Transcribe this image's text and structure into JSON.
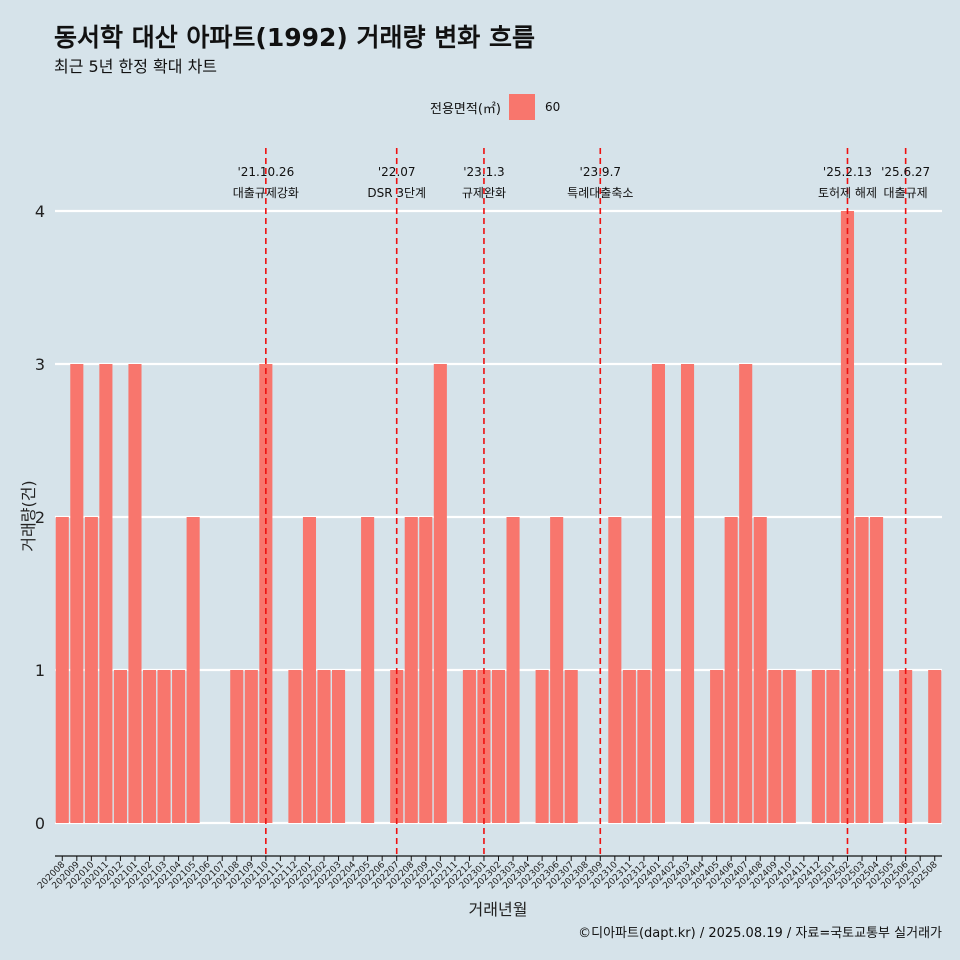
{
  "title": "동서학 대산 아파트(1992) 거래량 변화 흐름",
  "subtitle": "최근 5년 한정 확대 차트",
  "legend": {
    "title": "전용면적(㎡)",
    "items": [
      {
        "label": "60",
        "color": "#f8766d"
      }
    ]
  },
  "caption": "©디아파트(dapt.kr) / 2025.08.19 / 자료=국토교통부 실거래가",
  "chart_data": {
    "type": "bar",
    "xlabel": "거래년월",
    "ylabel": "거래량(건)",
    "ylim": [
      0,
      4
    ],
    "yticks": [
      0,
      1,
      2,
      3,
      4
    ],
    "grid": true,
    "legend_position": "top",
    "bar_color": "#f8766d",
    "categories": [
      "202008",
      "202009",
      "202010",
      "202011",
      "202012",
      "202101",
      "202102",
      "202103",
      "202104",
      "202105",
      "202106",
      "202107",
      "202108",
      "202109",
      "202110",
      "202111",
      "202112",
      "202201",
      "202202",
      "202203",
      "202204",
      "202205",
      "202206",
      "202207",
      "202208",
      "202209",
      "202210",
      "202211",
      "202212",
      "202301",
      "202302",
      "202303",
      "202304",
      "202305",
      "202306",
      "202307",
      "202308",
      "202309",
      "202310",
      "202311",
      "202312",
      "202401",
      "202402",
      "202403",
      "202404",
      "202405",
      "202406",
      "202407",
      "202408",
      "202409",
      "202410",
      "202411",
      "202412",
      "202501",
      "202502",
      "202503",
      "202504",
      "202505",
      "202506",
      "202507",
      "202508"
    ],
    "series": [
      {
        "name": "60",
        "values": [
          2,
          3,
          2,
          3,
          1,
          3,
          1,
          1,
          1,
          2,
          0,
          0,
          1,
          1,
          3,
          0,
          1,
          2,
          1,
          1,
          0,
          2,
          0,
          1,
          2,
          2,
          3,
          0,
          1,
          1,
          1,
          2,
          0,
          1,
          2,
          1,
          0,
          0,
          2,
          1,
          1,
          3,
          0,
          3,
          0,
          1,
          2,
          3,
          2,
          1,
          1,
          0,
          1,
          1,
          4,
          2,
          2,
          0,
          1,
          0,
          1
        ]
      }
    ],
    "annotations": [
      {
        "date": "'21.10.26",
        "text": "대출규제강화",
        "x": "202110"
      },
      {
        "date": "'22.07",
        "text": "DSR 3단계",
        "x": "202207"
      },
      {
        "date": "'23.1.3",
        "text": "규제완화",
        "x": "202301"
      },
      {
        "date": "'23.9.7",
        "text": "특례대출축소",
        "x": "202309"
      },
      {
        "date": "'25.2.13",
        "text": "토허제 해제",
        "x": "202502"
      },
      {
        "date": "'25.6.27",
        "text": "대출규제",
        "x": "202506"
      }
    ]
  }
}
